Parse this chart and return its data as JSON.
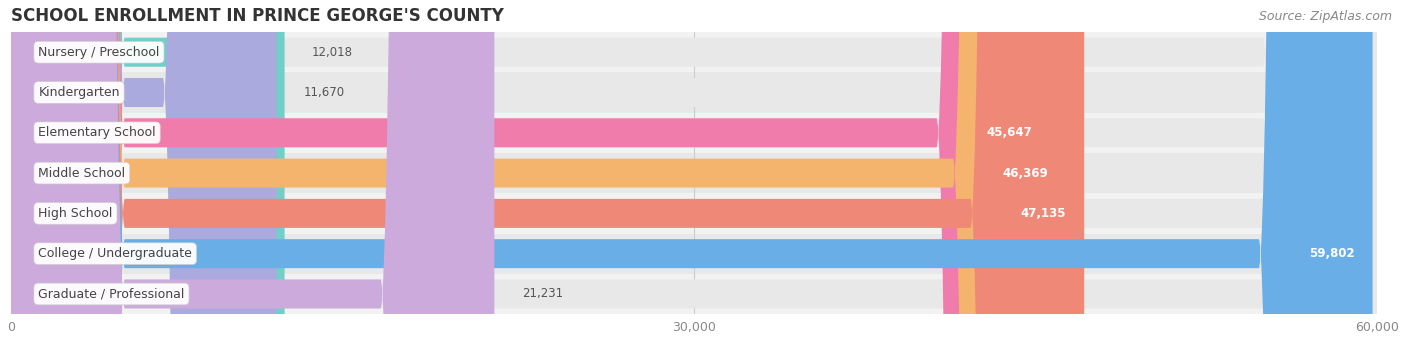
{
  "title": "SCHOOL ENROLLMENT IN PRINCE GEORGE'S COUNTY",
  "source": "Source: ZipAtlas.com",
  "categories": [
    "Nursery / Preschool",
    "Kindergarten",
    "Elementary School",
    "Middle School",
    "High School",
    "College / Undergraduate",
    "Graduate / Professional"
  ],
  "values": [
    12018,
    11670,
    45647,
    46369,
    47135,
    59802,
    21231
  ],
  "bar_colors": [
    "#70cfc7",
    "#abaade",
    "#f07cac",
    "#f5b46e",
    "#f08878",
    "#6aaee8",
    "#ccaadc"
  ],
  "bar_bg_color": "#e8e8e8",
  "row_bg_colors_even": "#f2f2f2",
  "row_bg_colors_odd": "#e8e8e8",
  "xlim_max": 60000,
  "xticks": [
    0,
    30000,
    60000
  ],
  "xtick_labels": [
    "0",
    "30,000",
    "60,000"
  ],
  "title_fontsize": 12,
  "label_fontsize": 9,
  "value_fontsize": 8.5,
  "source_fontsize": 9,
  "bar_height": 0.72
}
